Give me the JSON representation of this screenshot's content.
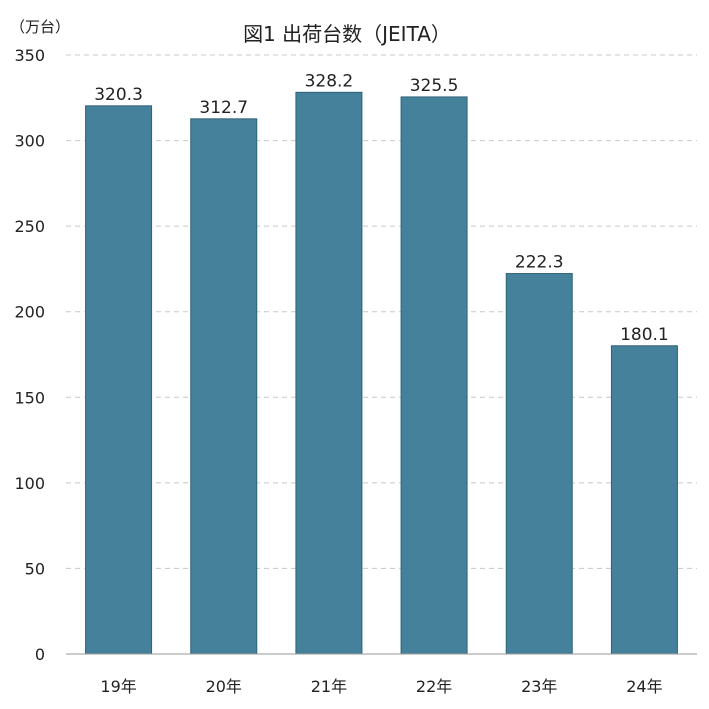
{
  "chart_data": {
    "type": "bar",
    "title": "図1  出荷台数（JEITA）",
    "unit_label": "（万台）",
    "categories": [
      "19年",
      "20年",
      "21年",
      "22年",
      "23年",
      "24年"
    ],
    "values": [
      320.3,
      312.7,
      328.2,
      325.5,
      222.3,
      180.1
    ],
    "value_labels": [
      "320.3",
      "312.7",
      "328.2",
      "325.5",
      "222.3",
      "180.1"
    ],
    "yticks": [
      "0",
      "50",
      "100",
      "150",
      "200",
      "250",
      "300",
      "350"
    ],
    "ylim": [
      0,
      350
    ],
    "grid": true,
    "bar_color": "#45819b",
    "bar_edge_color": "#2d6279"
  }
}
